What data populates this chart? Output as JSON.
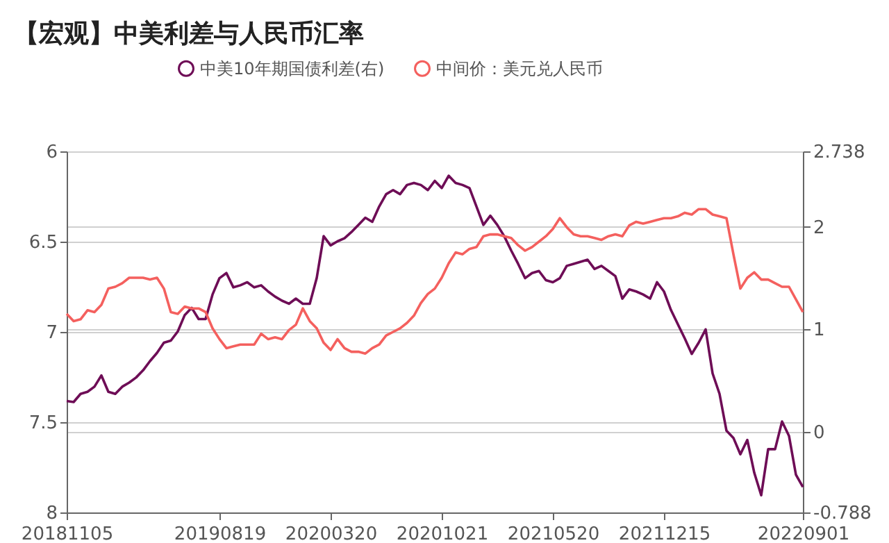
{
  "chart_data": {
    "type": "line",
    "title": "【宏观】中美利差与人民币汇率",
    "categories": [
      "20181105",
      null,
      null,
      null,
      null,
      null,
      null,
      null,
      null,
      null,
      null,
      null,
      null,
      null,
      null,
      null,
      null,
      null,
      null,
      null,
      null,
      null,
      "20190819",
      null,
      null,
      null,
      null,
      null,
      null,
      null,
      null,
      null,
      null,
      null,
      null,
      null,
      null,
      null,
      "20200320",
      null,
      null,
      null,
      null,
      null,
      null,
      null,
      null,
      null,
      null,
      null,
      null,
      null,
      null,
      null,
      "20201021",
      null,
      null,
      null,
      null,
      null,
      null,
      null,
      null,
      null,
      null,
      null,
      null,
      null,
      null,
      null,
      "20210520",
      null,
      null,
      null,
      null,
      null,
      null,
      null,
      null,
      null,
      null,
      null,
      null,
      null,
      null,
      null,
      "20211215",
      null,
      null,
      null,
      null,
      null,
      null,
      null,
      null,
      null,
      null,
      null,
      null,
      null,
      null,
      null,
      null,
      null,
      null,
      null,
      "20220901"
    ],
    "series": [
      {
        "name": "中美10年期国债利差(右)",
        "color": "#6e0d56",
        "axis": "y2",
        "values": [
          0.3,
          0.29,
          0.37,
          0.39,
          0.44,
          0.55,
          0.39,
          0.37,
          0.44,
          0.48,
          0.53,
          0.6,
          0.69,
          0.77,
          0.87,
          0.89,
          0.98,
          1.14,
          1.21,
          1.1,
          1.1,
          1.34,
          1.5,
          1.55,
          1.41,
          1.43,
          1.46,
          1.41,
          1.43,
          1.37,
          1.32,
          1.28,
          1.25,
          1.3,
          1.25,
          1.25,
          1.5,
          1.91,
          1.82,
          1.86,
          1.89,
          1.95,
          2.02,
          2.09,
          2.05,
          2.2,
          2.32,
          2.36,
          2.32,
          2.41,
          2.43,
          2.41,
          2.36,
          2.45,
          2.38,
          2.5,
          2.43,
          2.41,
          2.38,
          2.2,
          2.02,
          2.11,
          2.02,
          1.91,
          1.77,
          1.64,
          1.5,
          1.55,
          1.57,
          1.48,
          1.46,
          1.5,
          1.62,
          1.64,
          1.66,
          1.68,
          1.59,
          1.62,
          1.57,
          1.52,
          1.3,
          1.39,
          1.37,
          1.34,
          1.3,
          1.46,
          1.37,
          1.19,
          1.05,
          0.91,
          0.76,
          0.87,
          1.0,
          0.57,
          0.37,
          0.01,
          -0.06,
          -0.22,
          -0.08,
          -0.4,
          -0.62,
          -0.17,
          -0.17,
          0.1,
          -0.04,
          -0.42,
          -0.54
        ]
      },
      {
        "name": "中间价：美元兑人民币",
        "color": "#f4605e",
        "values": [
          6.9,
          6.94,
          6.93,
          6.88,
          6.89,
          6.85,
          6.76,
          6.75,
          6.73,
          6.7,
          6.7,
          6.7,
          6.71,
          6.7,
          6.76,
          6.89,
          6.9,
          6.86,
          6.87,
          6.87,
          6.89,
          6.98,
          7.04,
          7.09,
          7.08,
          7.07,
          7.07,
          7.07,
          7.01,
          7.04,
          7.03,
          7.04,
          6.99,
          6.96,
          6.87,
          6.94,
          6.98,
          7.06,
          7.1,
          7.04,
          7.09,
          7.11,
          7.11,
          7.12,
          7.09,
          7.07,
          7.02,
          7.0,
          6.98,
          6.95,
          6.91,
          6.84,
          6.79,
          6.76,
          6.7,
          6.62,
          6.56,
          6.57,
          6.54,
          6.53,
          6.47,
          6.46,
          6.46,
          6.47,
          6.48,
          6.52,
          6.55,
          6.53,
          6.5,
          6.47,
          6.43,
          6.37,
          6.42,
          6.46,
          6.47,
          6.47,
          6.48,
          6.49,
          6.47,
          6.46,
          6.47,
          6.41,
          6.39,
          6.4,
          6.39,
          6.38,
          6.37,
          6.37,
          6.36,
          6.34,
          6.35,
          6.32,
          6.32,
          6.35,
          6.36,
          6.37,
          6.57,
          6.76,
          6.7,
          6.67,
          6.71,
          6.71,
          6.73,
          6.75,
          6.75,
          6.82,
          6.89
        ]
      }
    ],
    "ylim": [
      8,
      6
    ],
    "yticks": [
      6,
      6.5,
      7,
      7.5,
      8
    ],
    "y2lim": [
      -0.788,
      2.738
    ],
    "y2ticks": [
      -0.788,
      0,
      1,
      2,
      2.738
    ],
    "grid": "y",
    "legend": "top",
    "marker": "none",
    "line_style": "solid"
  }
}
